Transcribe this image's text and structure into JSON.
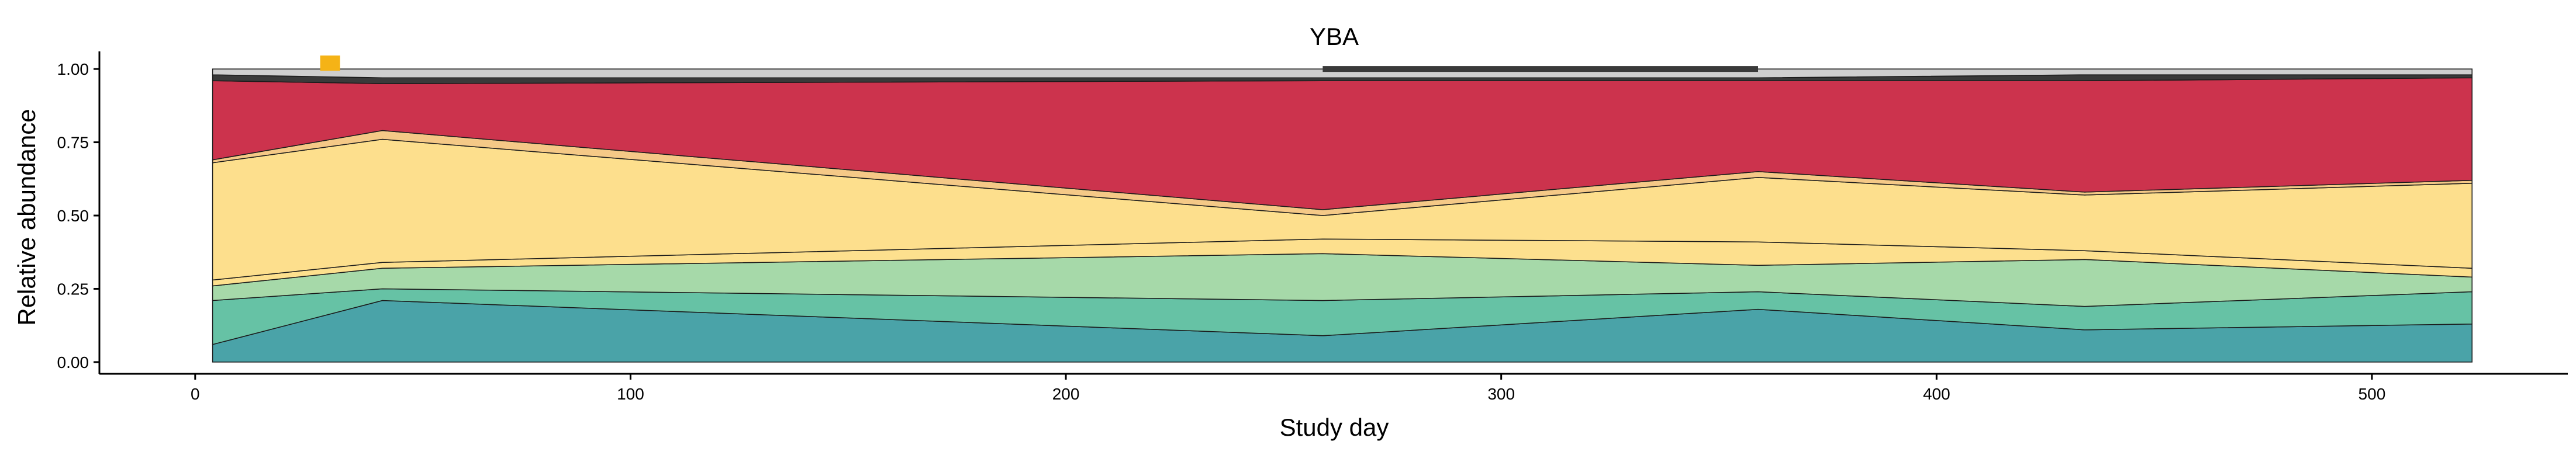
{
  "chart_data": {
    "type": "area",
    "title": "YBA",
    "xlabel": "Study day",
    "ylabel": "Relative abundance",
    "xlim": [
      -22,
      545
    ],
    "ylim": [
      -0.04,
      1.06
    ],
    "x_ticks": [
      0,
      100,
      200,
      300,
      400,
      500
    ],
    "x_tick_labels": [
      "0",
      "100",
      "200",
      "300",
      "400",
      "500"
    ],
    "y_ticks": [
      0,
      0.25,
      0.5,
      0.75,
      1.0
    ],
    "y_tick_labels": [
      "0.00",
      "0.25",
      "0.50",
      "0.75",
      "1.00"
    ],
    "grid": false,
    "legend": "none",
    "x": [
      4,
      43,
      259,
      359,
      434,
      523
    ],
    "series": [
      {
        "color": "#4aa3a8",
        "values": [
          0.06,
          0.21,
          0.09,
          0.18,
          0.11,
          0.13
        ]
      },
      {
        "color": "#66c2a5",
        "values": [
          0.15,
          0.04,
          0.12,
          0.06,
          0.08,
          0.11
        ]
      },
      {
        "color": "#a6d9a9",
        "values": [
          0.05,
          0.07,
          0.16,
          0.09,
          0.16,
          0.05
        ]
      },
      {
        "color": "#fde08e",
        "values": [
          0.02,
          0.02,
          0.05,
          0.08,
          0.03,
          0.03
        ]
      },
      {
        "color": "#fddf8d",
        "values": [
          0.4,
          0.42,
          0.08,
          0.22,
          0.19,
          0.29
        ]
      },
      {
        "color": "#f5c987",
        "values": [
          0.01,
          0.03,
          0.02,
          0.02,
          0.01,
          0.01
        ]
      },
      {
        "color": "#cc334d",
        "values": [
          0.27,
          0.16,
          0.44,
          0.31,
          0.38,
          0.35
        ]
      },
      {
        "color": "#3a3a3a",
        "values": [
          0.02,
          0.02,
          0.01,
          0.01,
          0.02,
          0.01
        ]
      },
      {
        "color": "#cfcfcf",
        "values": [
          0.02,
          0.03,
          0.03,
          0.03,
          0.02,
          0.02
        ]
      }
    ],
    "overlay_marks": [
      {
        "type": "bar",
        "x_start": 259,
        "x_end": 359,
        "y_start": 0.99,
        "y_end": 1.01,
        "color": "#3a3a3a"
      },
      {
        "type": "square",
        "x": 31,
        "y": 1.02,
        "color": "#f5b316"
      }
    ]
  }
}
